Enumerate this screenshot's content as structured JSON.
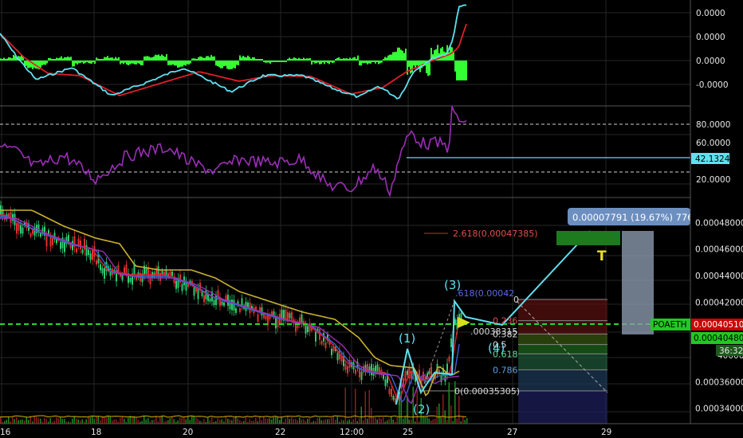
{
  "chart_data": [
    {
      "type": "line",
      "panel": "macd",
      "series": [],
      "y_ticks": [
        "0.0000",
        "0.0000",
        "0.0000",
        "-0.0000"
      ],
      "grid": true
    },
    {
      "type": "line",
      "panel": "rsi",
      "series": [],
      "y_ticks": [
        "80.0000",
        "60.0000",
        "40.0000",
        "20.0000"
      ],
      "ylim": [
        0,
        100
      ],
      "reference_lines": [
        70,
        30
      ],
      "current_value_label": "42.1324",
      "grid": true
    },
    {
      "type": "line",
      "panel": "price",
      "series": [],
      "y_ticks": [
        "0.00048000",
        "0.00046000",
        "0.00044000",
        "0.00042000",
        "0.00040000",
        "0.00038000",
        "0.00036000",
        "0.00034000"
      ],
      "ylim": [
        0.000332,
        0.000494
      ],
      "x_ticks": [
        "16",
        "18",
        "20",
        "22",
        "12:00",
        "25",
        "27",
        "29"
      ],
      "symbol_label": "POAETH",
      "last_price_label": "0.00040510",
      "secondary_price_label": "0.00040480",
      "countdown_label": "36:32",
      "fib_extension_label": "2.618(0.00047385)",
      "fib_levels": [
        {
          "label": "0",
          "value": 0.000422
        },
        {
          "label": "0.236",
          "value": 0.000406
        },
        {
          "label": "0.382",
          "value": 0.000396
        },
        {
          "label": "0.5",
          "value": 0.000388
        },
        {
          "label": "0.618",
          "value": 0.000381
        },
        {
          "label": "0.786",
          "value": 0.000369
        },
        {
          "label": "0(0.00035305)",
          "value": 0.00035305
        }
      ],
      "fib_partial_labels": [
        ".618(0.00042",
        ".00038315"
      ],
      "wave_labels": [
        "(1)",
        "(2)",
        "(3)",
        "(4)"
      ],
      "target_label": "T",
      "measure_label": "0.00007791 (19.67%) 776",
      "grid": true
    }
  ],
  "colors": {
    "background": "#000000",
    "grid": "#2a2a2a",
    "macd_line": "#5fe0f0",
    "signal_line": "#e0202a",
    "histogram": "#33ff33",
    "rsi_line": "#9a2fb5",
    "wave_line": "#5fe0f0",
    "last_price": "#22dd22",
    "price_badge": "#cc0000"
  }
}
